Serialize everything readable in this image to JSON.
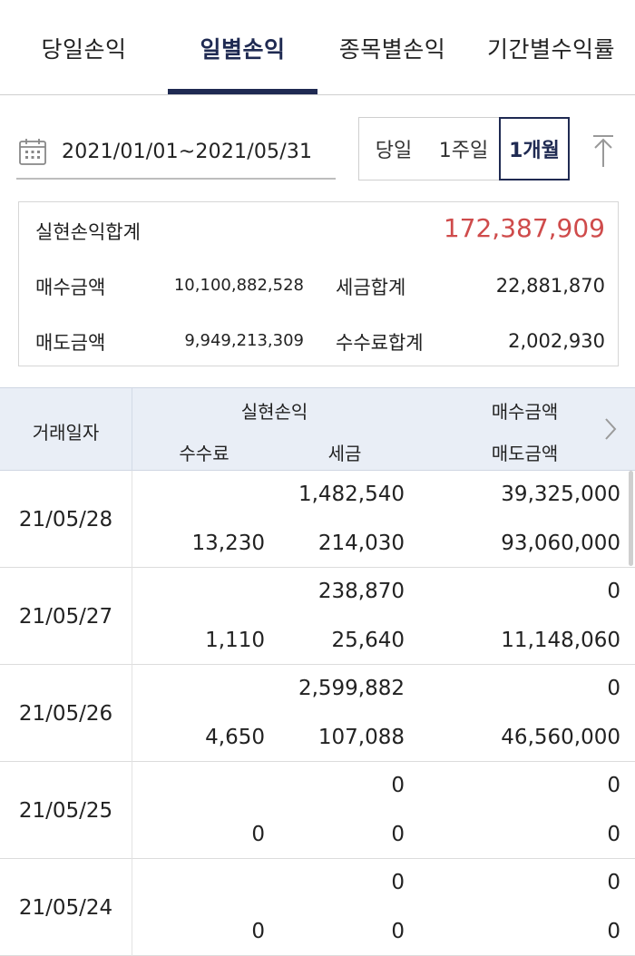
{
  "tabs": [
    {
      "label": "당일손익",
      "active": false
    },
    {
      "label": "일별손익",
      "active": true
    },
    {
      "label": "종목별손익",
      "active": false
    },
    {
      "label": "기간별수익률",
      "active": false
    }
  ],
  "date_range": {
    "value": "2021/01/01~2021/05/31",
    "icon": "calendar-icon"
  },
  "period_buttons": [
    {
      "label": "당일",
      "active": false
    },
    {
      "label": "1주일",
      "active": false
    },
    {
      "label": "1개월",
      "active": true
    }
  ],
  "summary": {
    "realized_total_label": "실현손익합계",
    "realized_total_value": "172,387,909",
    "buy_amount_label": "매수금액",
    "buy_amount_value": "10,100,882,528",
    "tax_total_label": "세금합계",
    "tax_total_value": "22,881,870",
    "sell_amount_label": "매도금액",
    "sell_amount_value": "9,949,213,309",
    "fee_total_label": "수수료합계",
    "fee_total_value": "2,002,930"
  },
  "table": {
    "headers": {
      "date": "거래일자",
      "realized": "실현손익",
      "fee": "수수료",
      "tax": "세금",
      "buy": "매수금액",
      "sell": "매도금액"
    },
    "rows": [
      {
        "date": "21/05/28",
        "realized": "1,482,540",
        "buy": "39,325,000",
        "fee": "13,230",
        "tax": "214,030",
        "sell": "93,060,000",
        "realized_red": true
      },
      {
        "date": "21/05/27",
        "realized": "238,870",
        "buy": "0",
        "fee": "1,110",
        "tax": "25,640",
        "sell": "11,148,060",
        "realized_red": true
      },
      {
        "date": "21/05/26",
        "realized": "2,599,882",
        "buy": "0",
        "fee": "4,650",
        "tax": "107,088",
        "sell": "46,560,000",
        "realized_red": true
      },
      {
        "date": "21/05/25",
        "realized": "0",
        "buy": "0",
        "fee": "0",
        "tax": "0",
        "sell": "0",
        "realized_red": false
      },
      {
        "date": "21/05/24",
        "realized": "0",
        "buy": "0",
        "fee": "0",
        "tax": "0",
        "sell": "0",
        "realized_red": false
      }
    ]
  },
  "colors": {
    "accent": "#1f2a52",
    "profit_red": "#cf4b4b",
    "header_bg": "#e9eef6"
  }
}
